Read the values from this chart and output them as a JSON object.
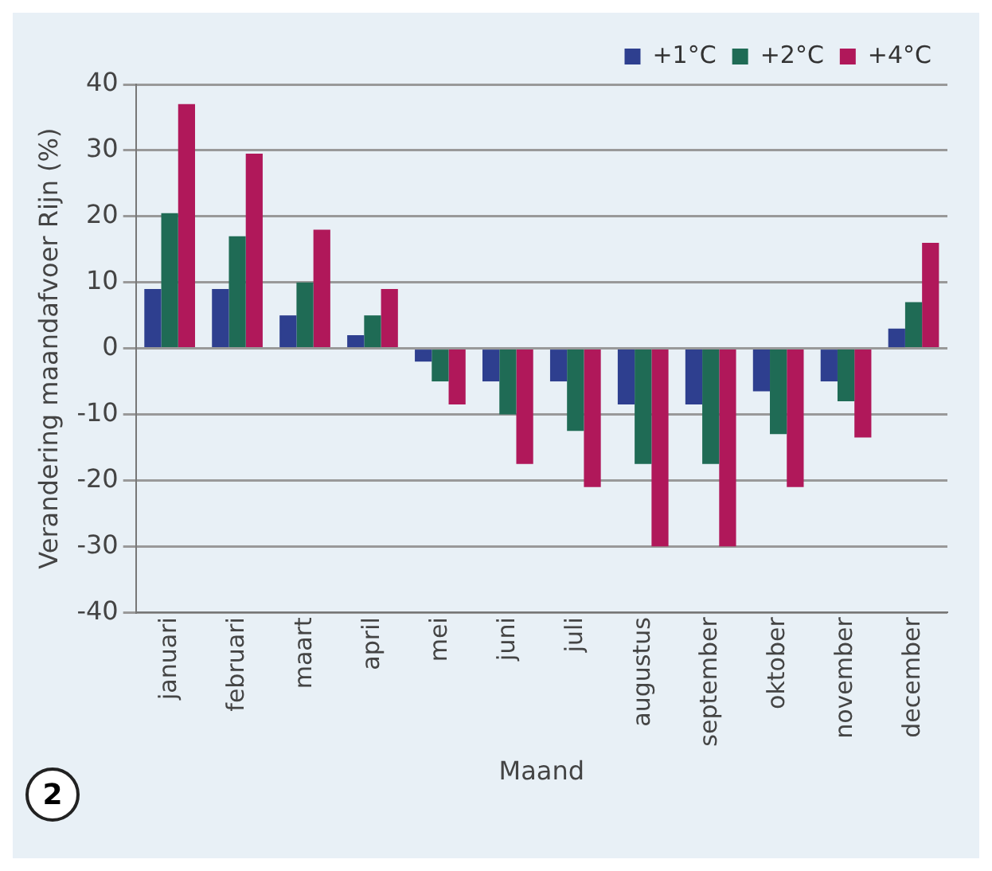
{
  "chart_data": {
    "type": "bar",
    "xlabel": "Maand",
    "ylabel": "Verandering maandafvoer Rijn (%)",
    "categories": [
      "januari",
      "februari",
      "maart",
      "april",
      "mei",
      "juni",
      "juli",
      "augustus",
      "september",
      "oktober",
      "november",
      "december"
    ],
    "series": [
      {
        "name": "+1°C",
        "color": "#2e3f8f",
        "values": [
          9,
          9,
          5,
          2,
          -2,
          -5,
          -5,
          -8.5,
          -8.5,
          -6.5,
          -5,
          3
        ]
      },
      {
        "name": "+2°C",
        "color": "#1f6b55",
        "values": [
          20.5,
          17,
          10,
          5,
          -5,
          -10,
          -12.5,
          -17.5,
          -17.5,
          -13,
          -8,
          7
        ]
      },
      {
        "name": "+4°C",
        "color": "#b0185a",
        "values": [
          37,
          29.5,
          18,
          9,
          -8.5,
          -17.5,
          -21,
          -30,
          -30,
          -21,
          -13.5,
          16
        ]
      }
    ],
    "ylim": [
      -40,
      40
    ],
    "yticks": [
      -40,
      -30,
      -20,
      -10,
      0,
      10,
      20,
      30,
      40
    ],
    "grid": "y",
    "legend": "top right",
    "annotations": [
      "2"
    ]
  }
}
